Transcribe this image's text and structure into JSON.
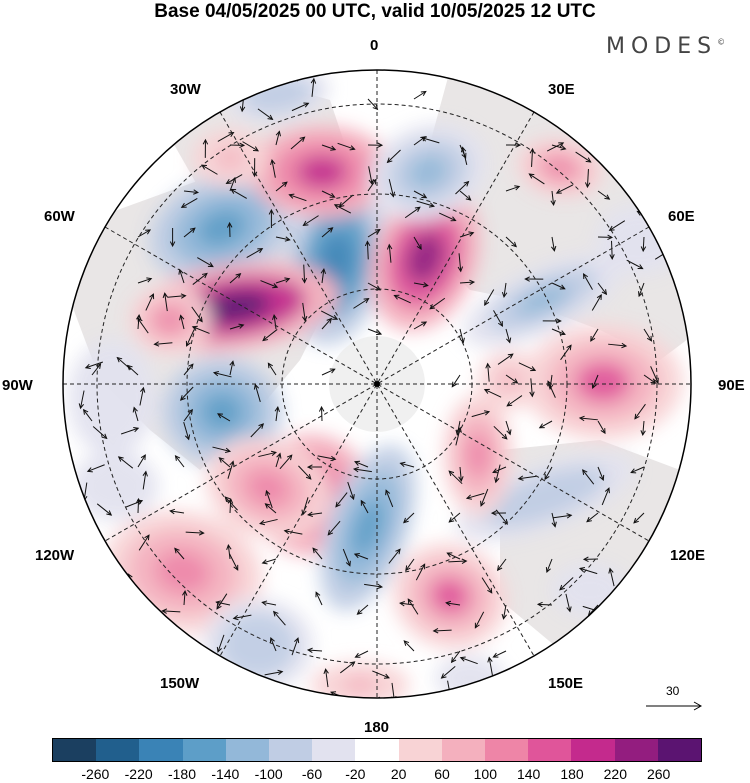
{
  "title": "Base 04/05/2025 00 UTC, valid 10/05/2025 12 UTC",
  "brand": "MODES",
  "brand_mark": "©",
  "longitude_labels": {
    "lon_0": "0",
    "lon_30e": "30E",
    "lon_60e": "60E",
    "lon_90e": "90E",
    "lon_120e": "120E",
    "lon_150e": "150E",
    "lon_180": "180",
    "lon_150w": "150W",
    "lon_120w": "120W",
    "lon_90w": "90W",
    "lon_60w": "60W",
    "lon_30w": "30W"
  },
  "reference_vector": {
    "value": "30"
  },
  "colorbar": {
    "colors": [
      "#1b3f60",
      "#215f8d",
      "#3a83b6",
      "#5d9ec8",
      "#93b8d9",
      "#c0cde4",
      "#e2e2ef",
      "#ffffff",
      "#f8d3d5",
      "#f4b0be",
      "#ee85a7",
      "#e0559a",
      "#c42a8d",
      "#931d7f",
      "#5b1471"
    ],
    "ticks": [
      "-260",
      "-220",
      "-180",
      "-140",
      "-100",
      "-60",
      "-20",
      "20",
      "60",
      "100",
      "140",
      "180",
      "220",
      "260"
    ]
  },
  "anomaly_centers": [
    {
      "level": -180
    },
    {
      "level": -220
    },
    {
      "level": 220
    },
    {
      "level": 260
    },
    {
      "level": 180
    },
    {
      "level": -140
    },
    {
      "level": -180
    },
    {
      "level": 180
    },
    {
      "level": -180
    },
    {
      "level": 140
    },
    {
      "level": 120
    },
    {
      "level": -140
    },
    {
      "level": 140
    },
    {
      "level": 100
    },
    {
      "level": -100
    },
    {
      "level": -100
    },
    {
      "level": 120
    },
    {
      "level": 100
    },
    {
      "level": -60
    },
    {
      "level": -60
    },
    {
      "level": -100
    },
    {
      "level": 100
    },
    {
      "level": 60
    },
    {
      "level": -60
    },
    {
      "level": 60
    },
    {
      "level": 60
    },
    {
      "level": -60
    },
    {
      "level": -60
    }
  ]
}
